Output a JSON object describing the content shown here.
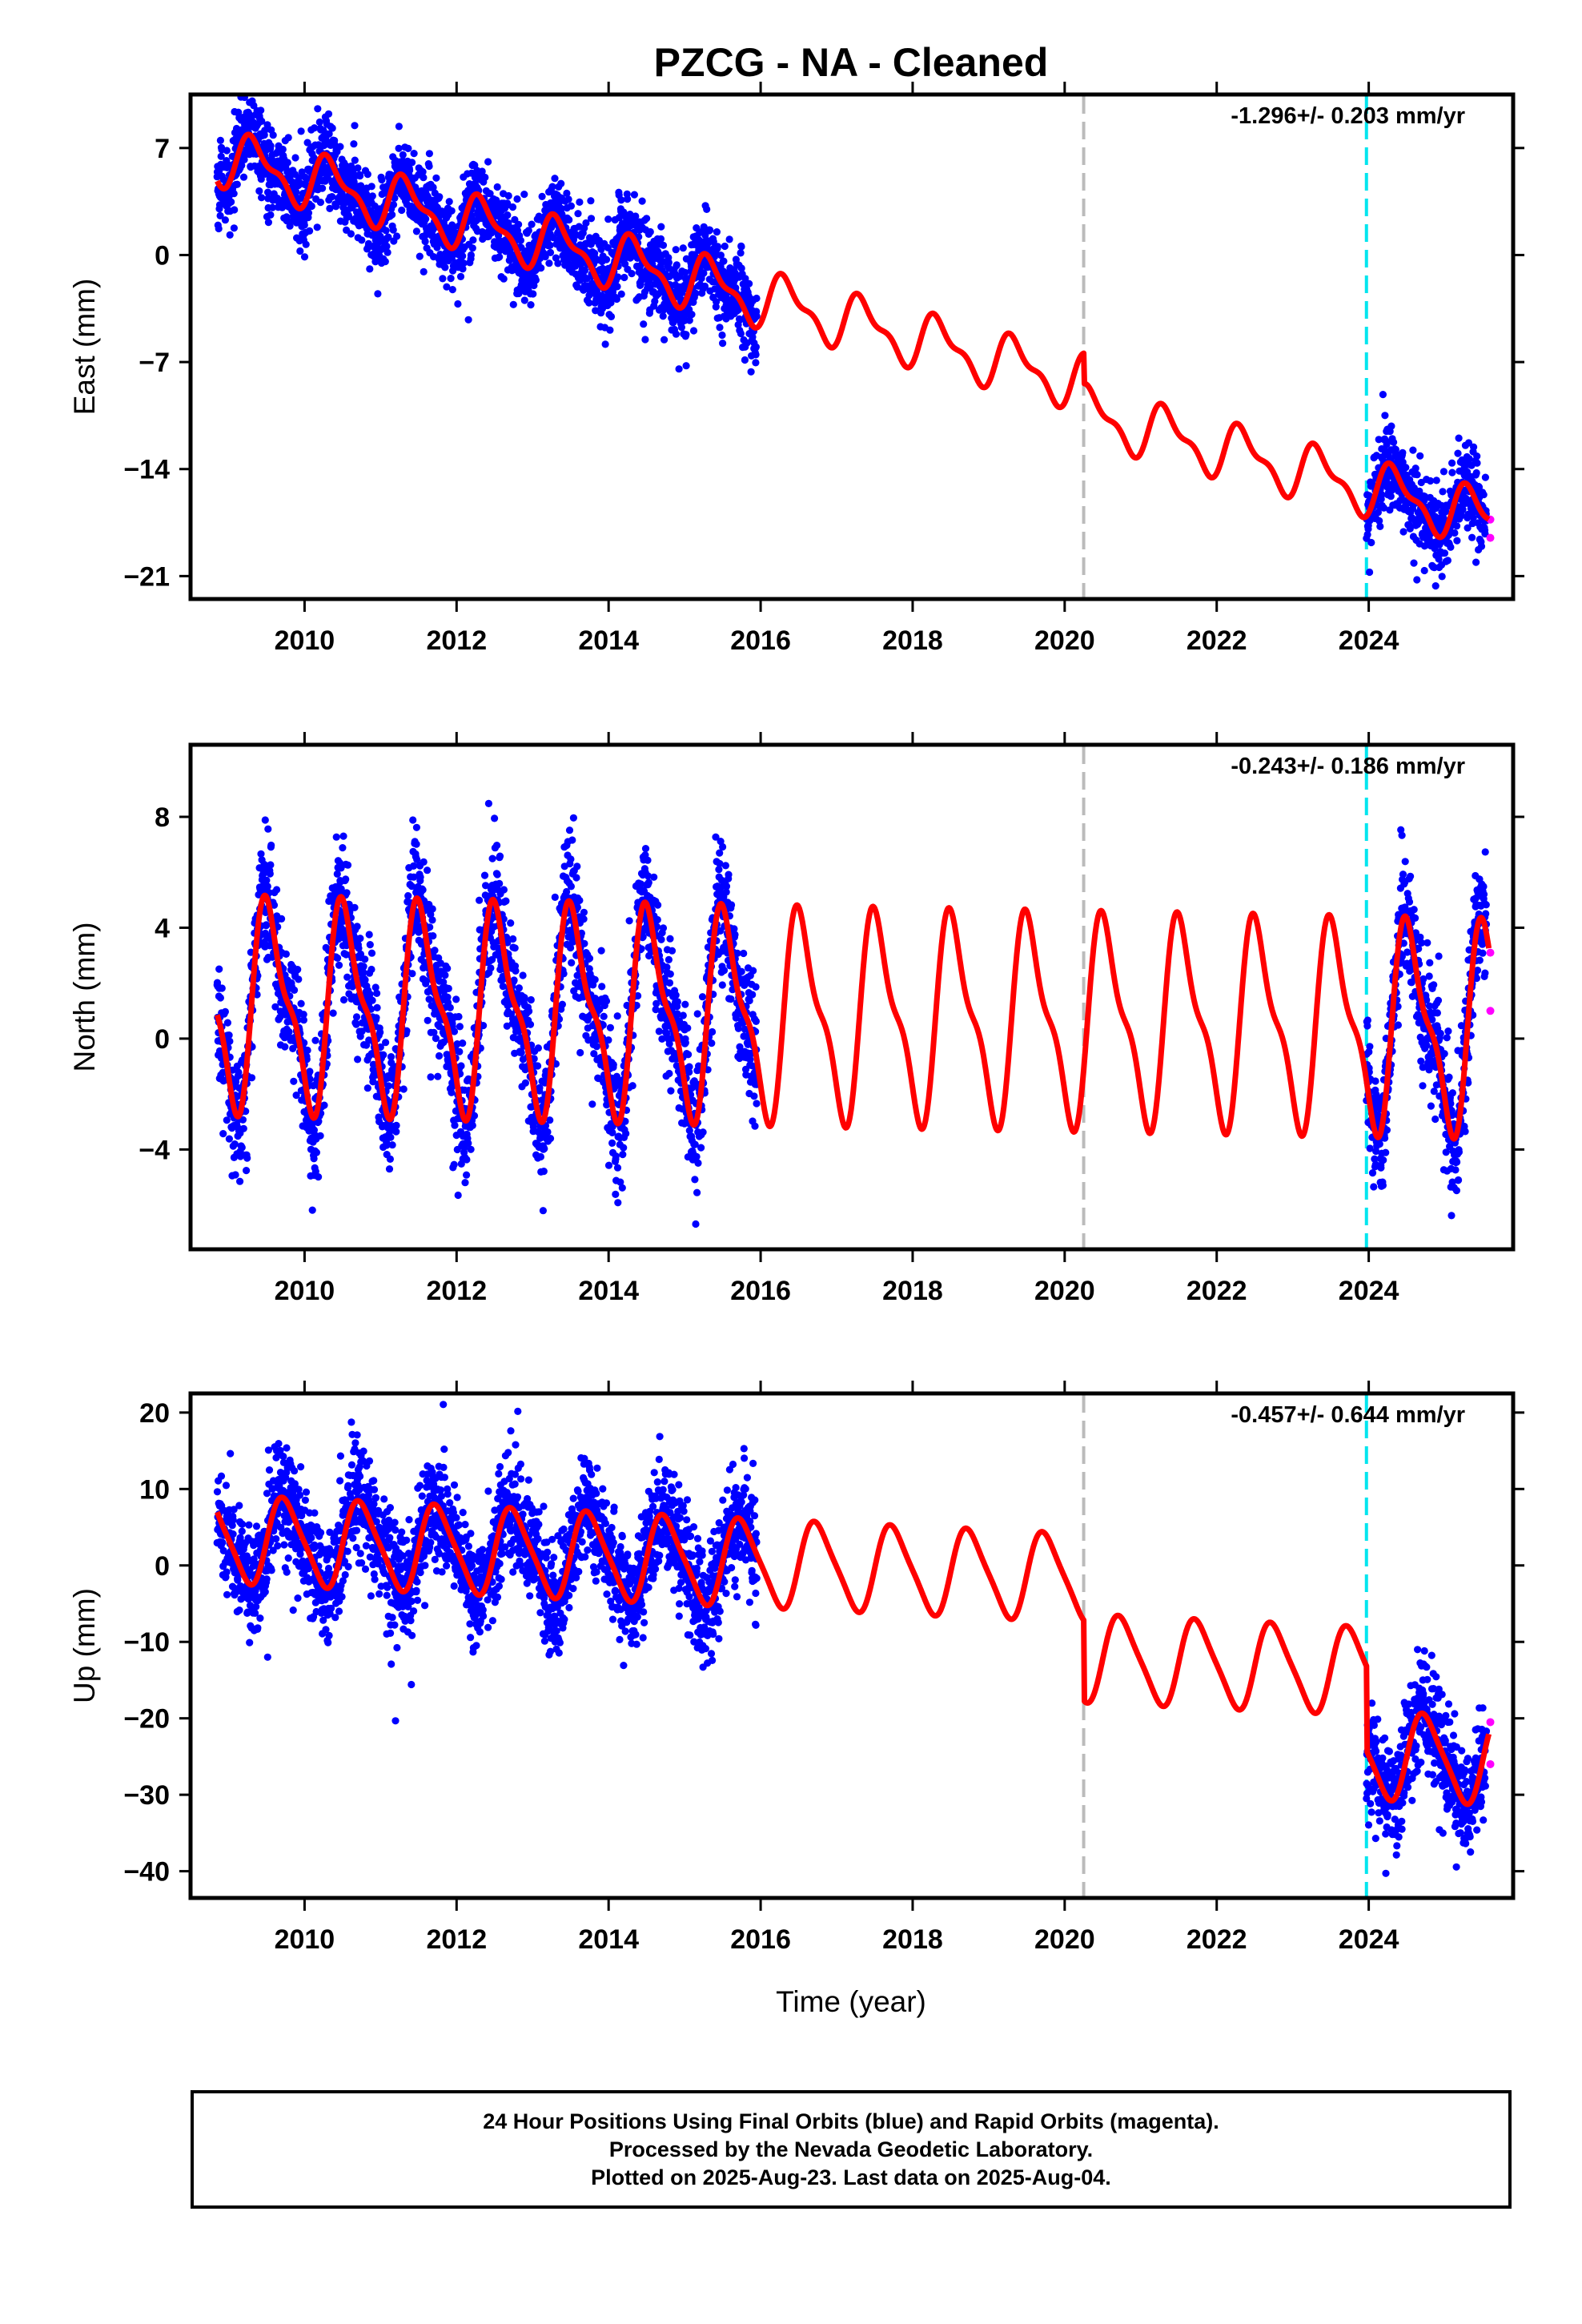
{
  "title": "PZCG  - NA - Cleaned",
  "xlabel": "Time (year)",
  "colors": {
    "final": "#0000ff",
    "rapid": "#ff00ff",
    "model": "#ff0000",
    "offset_line": "#bbbbbb",
    "event_line": "#00e5ee"
  },
  "footer": {
    "line1": "24 Hour Positions Using Final Orbits (blue) and Rapid Orbits (magenta).",
    "line2": "Processed by the Nevada Geodetic Laboratory.",
    "line3": "Plotted on 2025-Aug-23. Last data on 2025-Aug-04."
  },
  "chart_data": [
    {
      "type": "scatter",
      "panel": "east",
      "ylabel": "East (mm)",
      "rate_label": "-1.296+/- 0.203 mm/yr",
      "xlim": [
        2008.5,
        2025.9
      ],
      "ylim": [
        -22.5,
        10.5
      ],
      "yticks": [
        "7",
        "0",
        "−7",
        "−14",
        "−21"
      ],
      "ytick_values": [
        7,
        0,
        -7,
        -14,
        -21
      ],
      "xticks": [
        "2010",
        "2012",
        "2014",
        "2016",
        "2018",
        "2020",
        "2022",
        "2024"
      ],
      "xtick_values": [
        2010,
        2012,
        2014,
        2016,
        2018,
        2020,
        2022,
        2024
      ],
      "vlines": [
        {
          "x": 2020.25,
          "kind": "offset"
        },
        {
          "x": 2023.97,
          "kind": "event"
        }
      ],
      "model": {
        "trend_start": 6.5,
        "trend_rate": -1.3,
        "amp": 1.6,
        "semi_amp": 0.7,
        "phase": 2009.1,
        "noise": 1.3,
        "offsets": [
          {
            "x": 2020.25,
            "dy": -2.0
          },
          {
            "x": 2023.97,
            "dy": 0.0
          }
        ]
      },
      "segments": [
        {
          "from": 2008.85,
          "to": 2015.95
        },
        {
          "from": 2023.97,
          "to": 2025.55
        }
      ],
      "rapid_points": [
        {
          "x": 2025.6,
          "y": -17.3
        },
        {
          "x": 2025.6,
          "y": -18.5
        }
      ]
    },
    {
      "type": "scatter",
      "panel": "north",
      "ylabel": "North (mm)",
      "rate_label": "-0.243+/- 0.186 mm/yr",
      "xlim": [
        2008.5,
        2025.9
      ],
      "ylim": [
        -7.6,
        10.6
      ],
      "yticks": [
        "8",
        "4",
        "0",
        "−4"
      ],
      "ytick_values": [
        8,
        4,
        0,
        -4
      ],
      "xticks": [
        "2010",
        "2012",
        "2014",
        "2016",
        "2018",
        "2020",
        "2022",
        "2024"
      ],
      "xtick_values": [
        2010,
        2012,
        2014,
        2016,
        2018,
        2020,
        2022,
        2024
      ],
      "vlines": [
        {
          "x": 2020.25,
          "kind": "offset"
        },
        {
          "x": 2023.97,
          "kind": "event"
        }
      ],
      "model": {
        "trend_start": 1.2,
        "trend_rate": -0.05,
        "amp": 3.4,
        "semi_amp": 1.2,
        "phase": 2009.3,
        "noise": 1.1,
        "offsets": []
      },
      "segments": [
        {
          "from": 2008.85,
          "to": 2015.95
        },
        {
          "from": 2023.97,
          "to": 2025.55
        }
      ],
      "rapid_points": [
        {
          "x": 2025.6,
          "y": 3.1
        },
        {
          "x": 2025.6,
          "y": 1.0
        }
      ]
    },
    {
      "type": "scatter",
      "panel": "up",
      "ylabel": "Up (mm)",
      "rate_label": "-0.457+/- 0.644 mm/yr",
      "xlim": [
        2008.5,
        2025.9
      ],
      "ylim": [
        -43.5,
        22.5
      ],
      "yticks": [
        "20",
        "10",
        "0",
        "−10",
        "−20",
        "−30",
        "−40"
      ],
      "ytick_values": [
        20,
        10,
        0,
        -10,
        -20,
        -30,
        -40
      ],
      "xticks": [
        "2010",
        "2012",
        "2014",
        "2016",
        "2018",
        "2020",
        "2022",
        "2024"
      ],
      "xtick_values": [
        2010,
        2012,
        2014,
        2016,
        2018,
        2020,
        2022,
        2024
      ],
      "vlines": [
        {
          "x": 2020.25,
          "kind": "offset"
        },
        {
          "x": 2023.97,
          "kind": "event"
        }
      ],
      "model": {
        "trend_start": 3.5,
        "trend_rate": -0.45,
        "amp": 5.5,
        "semi_amp": 1.0,
        "phase": 2009.5,
        "noise": 3.5,
        "offsets": [
          {
            "x": 2020.25,
            "dy": -10.5
          },
          {
            "x": 2023.97,
            "dy": -11.0
          }
        ]
      },
      "segments": [
        {
          "from": 2008.85,
          "to": 2015.95
        },
        {
          "from": 2023.97,
          "to": 2025.55
        }
      ],
      "rapid_points": [
        {
          "x": 2025.6,
          "y": -20.5
        },
        {
          "x": 2025.6,
          "y": -26.0
        }
      ]
    }
  ]
}
